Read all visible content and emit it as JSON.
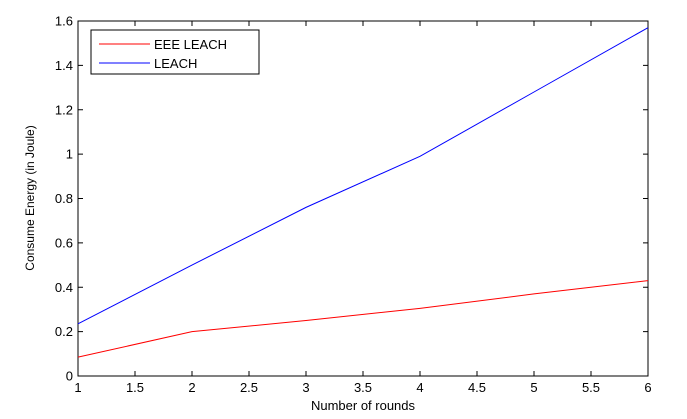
{
  "chart_data": {
    "type": "line",
    "title": "",
    "xlabel": "Number of rounds",
    "ylabel": "Consume Energy (in Joule)",
    "xlim": [
      1,
      6
    ],
    "ylim": [
      0,
      1.6
    ],
    "xticks": [
      1,
      1.5,
      2,
      2.5,
      3,
      3.5,
      4,
      4.5,
      5,
      5.5,
      6
    ],
    "xtick_labels": [
      "1",
      "1.5",
      "2",
      "2.5",
      "3",
      "3.5",
      "4",
      "4.5",
      "5",
      "5.5",
      "6"
    ],
    "yticks": [
      0,
      0.2,
      0.4,
      0.6,
      0.8,
      1,
      1.2,
      1.4,
      1.6
    ],
    "ytick_labels": [
      "0",
      "0.2",
      "0.4",
      "0.6",
      "0.8",
      "1",
      "1.2",
      "1.4",
      "1.6"
    ],
    "grid": false,
    "legend_position": "top-left",
    "x": [
      1,
      2,
      3,
      4,
      5,
      6
    ],
    "series": [
      {
        "name": "EEE LEACH",
        "color": "#ff0000",
        "values": [
          0.085,
          0.2,
          0.25,
          0.305,
          0.37,
          0.43
        ]
      },
      {
        "name": "LEACH",
        "color": "#0000ff",
        "values": [
          0.235,
          0.5,
          0.76,
          0.99,
          1.28,
          1.57
        ]
      }
    ]
  }
}
